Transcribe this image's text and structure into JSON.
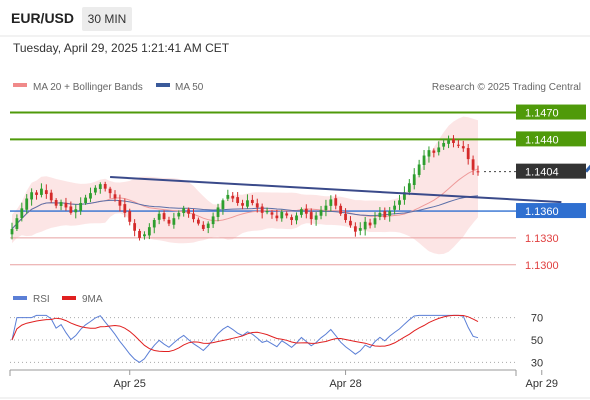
{
  "header": {
    "pair": "EUR/USD",
    "timeframe": "30 MIN",
    "timestamp": "Tuesday, April 29, 2025 1:21:41 AM CET"
  },
  "chart_data": [
    {
      "type": "candlestick",
      "legend": [
        {
          "label": "MA 20 + Bollinger Bands",
          "color": "#f08a8a"
        },
        {
          "label": "MA 50",
          "color": "#3a5a9a"
        }
      ],
      "copyright": "Research © 2025 Trading Central",
      "ylim": [
        1.1283,
        1.1484
      ],
      "x_ticks": [
        "Apr 25",
        "Apr 28",
        "Apr 29"
      ],
      "levels": [
        {
          "value": 1.147,
          "label": "1.1470",
          "kind": "target",
          "color": "#4f9a0a"
        },
        {
          "value": 1.144,
          "label": "1.1440",
          "kind": "resistance",
          "color": "#4f9a0a"
        },
        {
          "value": 1.1404,
          "label": "1.1404",
          "kind": "last",
          "color": "#333333"
        },
        {
          "value": 1.136,
          "label": "1.1360",
          "kind": "pivot",
          "color": "#2f6fd0"
        },
        {
          "value": 1.133,
          "label": "1.1330",
          "kind": "support",
          "color": "#e8a0a0"
        },
        {
          "value": 1.13,
          "label": "1.1300",
          "kind": "support",
          "color": "#e8a0a0"
        }
      ],
      "close_series": [
        1.134,
        1.1352,
        1.1363,
        1.1374,
        1.1381,
        1.1378,
        1.1385,
        1.1379,
        1.1372,
        1.1366,
        1.137,
        1.1364,
        1.1358,
        1.1362,
        1.1369,
        1.1375,
        1.138,
        1.1386,
        1.139,
        1.1385,
        1.138,
        1.1374,
        1.1366,
        1.1358,
        1.1348,
        1.1338,
        1.133,
        1.1334,
        1.1342,
        1.135,
        1.1357,
        1.1351,
        1.1346,
        1.1352,
        1.1358,
        1.1363,
        1.1357,
        1.1351,
        1.1346,
        1.134,
        1.1346,
        1.1354,
        1.1364,
        1.1372,
        1.1378,
        1.1374,
        1.1369,
        1.1366,
        1.1372,
        1.1369,
        1.1364,
        1.1358,
        1.136,
        1.1356,
        1.1352,
        1.1359,
        1.1355,
        1.135,
        1.1355,
        1.1362,
        1.1357,
        1.1351,
        1.1355,
        1.1361,
        1.1366,
        1.1373,
        1.1366,
        1.1357,
        1.135,
        1.1344,
        1.1337,
        1.1341,
        1.1348,
        1.1344,
        1.1352,
        1.1358,
        1.1353,
        1.136,
        1.1366,
        1.1372,
        1.1381,
        1.1391,
        1.1401,
        1.1412,
        1.1422,
        1.1428,
        1.1425,
        1.1431,
        1.1436,
        1.1439,
        1.1436,
        1.1433,
        1.143,
        1.1418,
        1.1406,
        1.1404
      ],
      "trendlines": [
        {
          "from": {
            "index": 20,
            "value": 1.1398
          },
          "to": {
            "index": 112,
            "value": 1.137
          },
          "color": "#3a4a8a"
        }
      ],
      "projection": {
        "from": {
          "index": 117,
          "value": 1.1404
        },
        "to": {
          "index": 127,
          "value": 1.147
        },
        "color": "#2f5fa8"
      }
    },
    {
      "type": "line",
      "title": "RSI",
      "series": [
        {
          "name": "RSI",
          "color": "#5b7fd6"
        },
        {
          "name": "9MA",
          "color": "#e02020"
        }
      ],
      "ylim": [
        25,
        75
      ],
      "y_ticks": [
        70,
        50,
        30
      ]
    }
  ]
}
